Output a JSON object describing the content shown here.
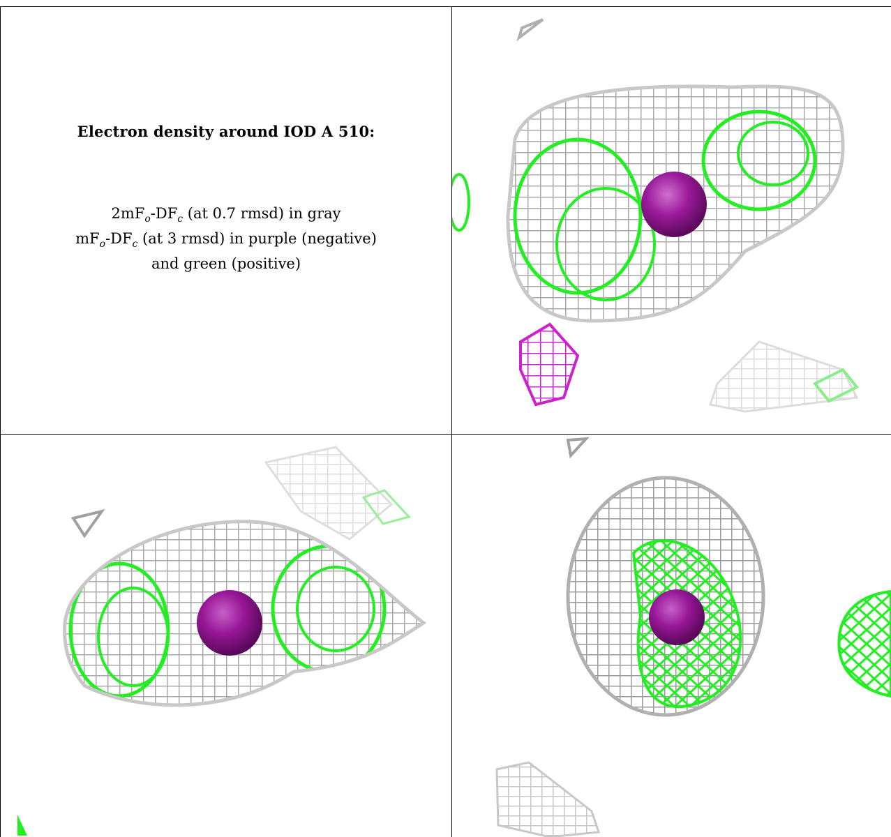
{
  "caption": {
    "title": "Electron density around IOD A 510:",
    "line1": {
      "a": "2mF",
      "o": "o",
      "b": "-DF",
      "c": "c",
      "rest": " (at 0.7 rmsd) in gray"
    },
    "line2": {
      "a": "mF",
      "o": "o",
      "b": "-DF",
      "c": "c",
      "rest": " (at 3 rmsd) in purple (negative)"
    },
    "line3": "and green (positive)"
  },
  "colors": {
    "gray_mesh": "#bdbdbd",
    "gray_mesh_dark": "#8a8a8a",
    "green_mesh": "#22ee22",
    "purple_mesh": "#cc22cc",
    "iodine_sphere": "#9a1a9a",
    "border": "#000000"
  },
  "panels": [
    {
      "name": "view-top-right",
      "content": "gray mesh with green lobes, purple iodine sphere, magenta negative mesh"
    },
    {
      "name": "view-bottom-left",
      "content": "elongated gray mesh with green lobes and central purple sphere"
    },
    {
      "name": "view-bottom-right",
      "content": "ovoid gray mesh with green inner mesh and purple sphere"
    }
  ]
}
